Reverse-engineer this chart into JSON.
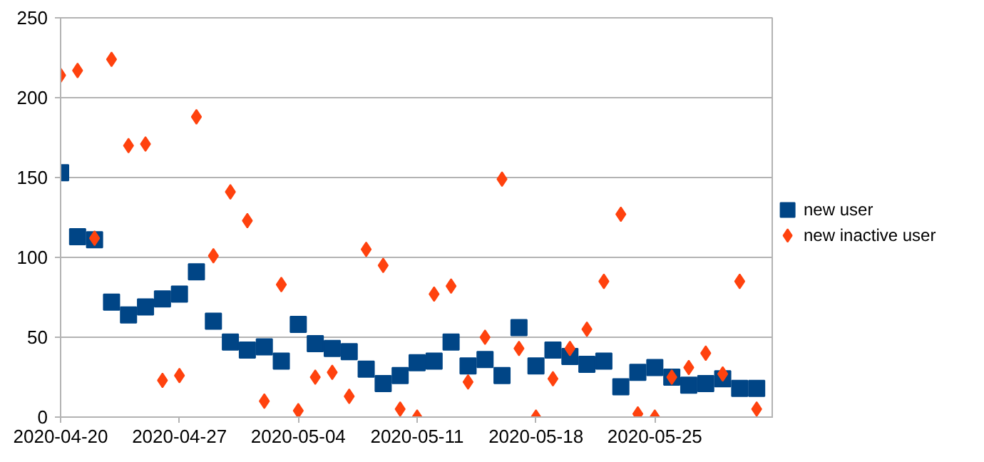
{
  "chart_data": {
    "type": "scatter",
    "x": [
      "2020-04-20",
      "2020-04-21",
      "2020-04-22",
      "2020-04-23",
      "2020-04-24",
      "2020-04-25",
      "2020-04-26",
      "2020-04-27",
      "2020-04-28",
      "2020-04-29",
      "2020-04-30",
      "2020-05-01",
      "2020-05-02",
      "2020-05-03",
      "2020-05-04",
      "2020-05-05",
      "2020-05-06",
      "2020-05-07",
      "2020-05-08",
      "2020-05-09",
      "2020-05-10",
      "2020-05-11",
      "2020-05-12",
      "2020-05-13",
      "2020-05-14",
      "2020-05-15",
      "2020-05-16",
      "2020-05-17",
      "2020-05-18",
      "2020-05-19",
      "2020-05-20",
      "2020-05-21",
      "2020-05-22",
      "2020-05-23",
      "2020-05-24",
      "2020-05-25",
      "2020-05-26",
      "2020-05-27",
      "2020-05-28",
      "2020-05-29",
      "2020-05-30",
      "2020-05-31"
    ],
    "series": [
      {
        "name": "new user",
        "color": "#004586",
        "marker": "square",
        "values": [
          153,
          113,
          111,
          72,
          64,
          69,
          74,
          77,
          91,
          60,
          47,
          42,
          44,
          35,
          58,
          46,
          43,
          41,
          30,
          21,
          26,
          34,
          35,
          47,
          32,
          36,
          26,
          56,
          32,
          42,
          38,
          33,
          35,
          19,
          28,
          31,
          25,
          20,
          21,
          24,
          18,
          18
        ]
      },
      {
        "name": "new inactive user",
        "color": "#ff420e",
        "marker": "diamond",
        "values": [
          214,
          217,
          112,
          224,
          170,
          171,
          23,
          26,
          188,
          101,
          141,
          123,
          10,
          83,
          4,
          25,
          28,
          13,
          105,
          95,
          5,
          0,
          77,
          82,
          22,
          50,
          149,
          43,
          0,
          24,
          43,
          55,
          85,
          127,
          2,
          0,
          25,
          31,
          40,
          27,
          85,
          5
        ]
      }
    ],
    "xlim": [
      "2020-04-20",
      "2020-06-01"
    ],
    "xticks": [
      {
        "value": "2020-04-20",
        "label": "2020-04-20"
      },
      {
        "value": "2020-04-27",
        "label": "2020-04-27"
      },
      {
        "value": "2020-05-04",
        "label": "2020-05-04"
      },
      {
        "value": "2020-05-11",
        "label": "2020-05-11"
      },
      {
        "value": "2020-05-18",
        "label": "2020-05-18"
      },
      {
        "value": "2020-05-25",
        "label": "2020-05-25"
      }
    ],
    "ylim": [
      0,
      250
    ],
    "yticks": [
      0,
      50,
      100,
      150,
      200,
      250
    ],
    "grid": "y",
    "legend": "right"
  }
}
